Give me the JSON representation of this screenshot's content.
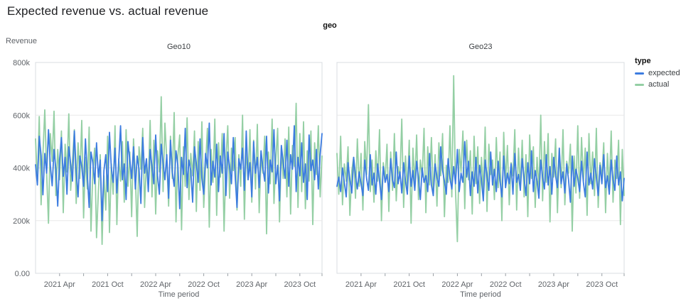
{
  "header": {
    "title": "Expected revenue vs. actual revenue"
  },
  "legend": {
    "title": "type"
  },
  "chart_data": {
    "type": "line",
    "title": "Expected revenue vs. actual revenue",
    "facet_label": "geo",
    "xlabel": "Time period",
    "ylabel": "Revenue",
    "y_unit_note": "values in thousands (k)",
    "ylim": [
      0,
      800
    ],
    "grid": "horizontal-only",
    "legend_position": "right",
    "x_range_note": "weekly points, 2021 Jan through 2023 Dec (156 weeks)",
    "y_ticks": [
      {
        "value": 0,
        "label": "0.00"
      },
      {
        "value": 200,
        "label": "200k"
      },
      {
        "value": 400,
        "label": "400k"
      },
      {
        "value": 600,
        "label": "600k"
      },
      {
        "value": 800,
        "label": "800k"
      }
    ],
    "x_ticks": [
      {
        "week": 13,
        "label": "2021 Apr"
      },
      {
        "week": 26,
        "label": ""
      },
      {
        "week": 39,
        "label": "2021 Oct"
      },
      {
        "week": 52,
        "label": ""
      },
      {
        "week": 65,
        "label": "2022 Apr"
      },
      {
        "week": 78,
        "label": ""
      },
      {
        "week": 91,
        "label": "2022 Oct"
      },
      {
        "week": 104,
        "label": ""
      },
      {
        "week": 117,
        "label": "2023 Apr"
      },
      {
        "week": 130,
        "label": ""
      },
      {
        "week": 143,
        "label": "2023 Oct"
      },
      {
        "week": 155,
        "label": ""
      }
    ],
    "series_meta": [
      {
        "name": "expected",
        "color": "#3c7ce0"
      },
      {
        "name": "actual",
        "color": "#94cfa4"
      }
    ],
    "facets": [
      {
        "title": "Geo10",
        "series": [
          {
            "name": "expected",
            "values": [
              412,
              335,
              520,
              448,
              298,
              455,
              380,
              545,
              410,
              332,
              470,
              395,
              255,
              430,
              515,
              368,
              440,
              300,
              480,
              415,
              350,
              540,
              385,
              290,
              445,
              405,
              330,
              510,
              375,
              250,
              460,
              420,
              340,
              495,
              365,
              430,
              200,
              390,
              450,
              310,
              535,
              400,
              345,
              475,
              305,
              425,
              560,
              355,
              415,
              280,
              500,
              430,
              360,
              480,
              320,
              445,
              395,
              265,
              515,
              380,
              435,
              310,
              470,
              405,
              340,
              525,
              370,
              300,
              490,
              420,
              355,
              450,
              285,
              505,
              385,
              330,
              465,
              410,
              245,
              440,
              375,
              550,
              325,
              430,
              390,
              270,
              480,
              415,
              345,
              510,
              360,
              300,
              455,
              400,
              570,
              335,
              425,
              365,
              490,
              310,
              445,
              380,
              530,
              295,
              460,
              405,
              340,
              515,
              370,
              250,
              435,
              395,
              475,
              315,
              540,
              355,
              420,
              290,
              500,
              380,
              440,
              325,
              465,
              400,
              350,
              520,
              305,
              430,
              385,
              545,
              340,
              410,
              275,
              485,
              420,
              360,
              505,
              330,
              450,
              395,
              560,
              310,
              440,
              370,
              495,
              345,
              415,
              280,
              525,
              390,
              430,
              355,
              470,
              320,
              450,
              530
            ]
          },
          {
            "name": "actual",
            "values": [
              510,
              340,
              595,
              260,
              450,
              620,
              380,
              190,
              530,
              425,
              615,
              295,
              470,
              355,
              540,
              230,
              490,
              385,
              605,
              315,
              430,
              545,
              265,
              495,
              360,
              580,
              210,
              440,
              320,
              555,
              160,
              390,
              475,
              135,
              310,
              450,
              110,
              370,
              240,
              520,
              155,
              415,
              300,
              560,
              185,
              435,
              350,
              500,
              270,
              545,
              330,
              460,
              215,
              510,
              375,
              140,
              480,
              395,
              550,
              250,
              420,
              340,
              580,
              290,
              505,
              225,
              465,
              385,
              670,
              310,
              570,
              430,
              255,
              520,
              360,
              610,
              195,
              445,
              525,
              165,
              480,
              330,
              590,
              280,
              455,
              370,
              540,
              235,
              500,
              315,
              575,
              250,
              410,
              550,
              175,
              470,
              345,
              585,
              220,
              495,
              365,
              530,
              160,
              425,
              560,
              285,
              475,
              390,
              515,
              240,
              450,
              330,
              600,
              205,
              480,
              355,
              545,
              270,
              505,
              320,
              565,
              230,
              440,
              380,
              520,
              150,
              460,
              340,
              585,
              265,
              430,
              550,
              195,
              475,
              360,
              510,
              290,
              555,
              225,
              485,
              405,
              645,
              250,
              530,
              310,
              575,
              245,
              465,
              350,
              540,
              185,
              495,
              375,
              560,
              290,
              445
            ]
          }
        ]
      },
      {
        "title": "Geo23",
        "series": [
          {
            "name": "expected",
            "values": [
              330,
              365,
              310,
              400,
              345,
              290,
              420,
              355,
              305,
              440,
              370,
              320,
              385,
              340,
              295,
              430,
              360,
              315,
              450,
              335,
              380,
              300,
              415,
              350,
              280,
              405,
              345,
              375,
              310,
              435,
              355,
              325,
              460,
              340,
              385,
              305,
              420,
              350,
              300,
              445,
              330,
              390,
              315,
              425,
              360,
              280,
              400,
              345,
              370,
              310,
              455,
              335,
              295,
              415,
              365,
              330,
              480,
              390,
              350,
              300,
              435,
              360,
              320,
              405,
              340,
              470,
              310,
              380,
              345,
              500,
              365,
              425,
              295,
              385,
              330,
              440,
              305,
              410,
              355,
              275,
              430,
              370,
              315,
              460,
              335,
              395,
              310,
              425,
              350,
              290,
              445,
              325,
              380,
              340,
              415,
              300,
              455,
              345,
              375,
              315,
              435,
              360,
              295,
              420,
              340,
              465,
              310,
              390,
              350,
              285,
              430,
              365,
              320,
              450,
              335,
              405,
              300,
              440,
              370,
              325,
              475,
              340,
              385,
              305,
              415,
              355,
              270,
              445,
              330,
              395,
              360,
              310,
              425,
              345,
              290,
              460,
              335,
              380,
              320,
              435,
              365,
              295,
              410,
              340,
              450,
              325,
              370,
              300,
              430,
              355,
              315,
              445,
              335,
              385,
              275,
              360
            ]
          },
          {
            "name": "actual",
            "values": [
              455,
              300,
              520,
              260,
              415,
              350,
              480,
              220,
              390,
              440,
              285,
              510,
              330,
              455,
              240,
              500,
              375,
              640,
              310,
              430,
              270,
              465,
              350,
              545,
              200,
              420,
              355,
              490,
              235,
              460,
              315,
              530,
              275,
              405,
              360,
              585,
              250,
              445,
              320,
              505,
              190,
              475,
              340,
              525,
              280,
              430,
              365,
              550,
              230,
              480,
              335,
              515,
              295,
              450,
              255,
              495,
              370,
              530,
              215,
              410,
              345,
              560,
              290,
              750,
              315,
              120,
              470,
              385,
              540,
              245,
              505,
              355,
              465,
              225,
              520,
              340,
              480,
              265,
              440,
              310,
              555,
              235,
              490,
              375,
              430,
              280,
              515,
              325,
              460,
              200,
              535,
              350,
              485,
              260,
              420,
              370,
              545,
              240,
              475,
              330,
              505,
              290,
              450,
              215,
              525,
              360,
              480,
              250,
              440,
              315,
              600,
              275,
              500,
              345,
              530,
              195,
              455,
              365,
              510,
              230,
              470,
              325,
              545,
              260,
              425,
              380,
              490,
              160,
              445,
              305,
              560,
              285,
              515,
              350,
              475,
              220,
              530,
              340,
              460,
              295,
              550,
              250,
              420,
              365,
              495,
              230,
              455,
              320,
              540,
              270,
              430,
              360,
              505,
              185,
              470,
              295
            ]
          }
        ]
      }
    ],
    "style": {
      "grid_color": "#e8e8e8",
      "border_color": "#dadce0",
      "tick_color": "#9aa0a6",
      "tick_label_color": "#5f6368",
      "facet_title_color": "#3c4043"
    }
  }
}
